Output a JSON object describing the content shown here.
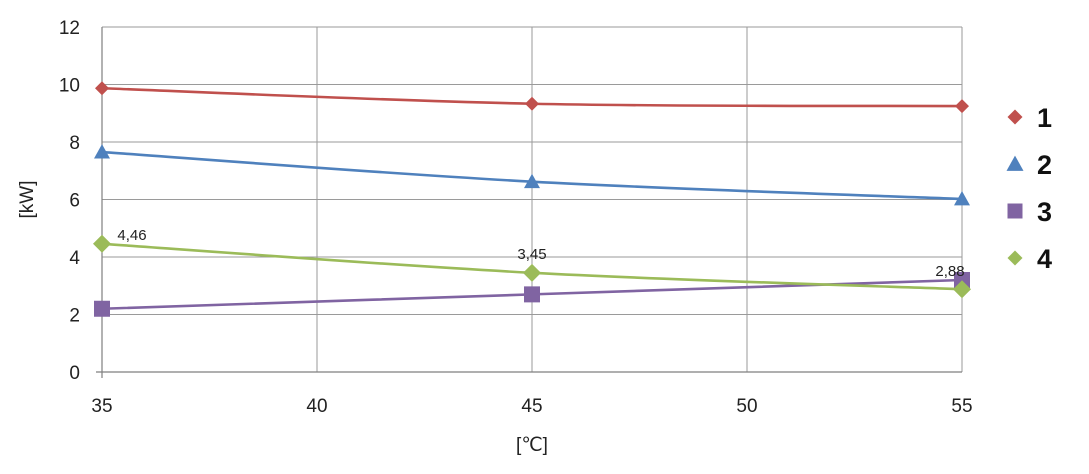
{
  "chart_data": {
    "type": "line",
    "title": "",
    "xlabel": "[℃]",
    "ylabel": "[kW]",
    "xlim": [
      35,
      55
    ],
    "ylim": [
      0,
      12
    ],
    "x_ticks": [
      "35",
      "40",
      "45",
      "50",
      "55"
    ],
    "y_ticks": [
      "0",
      "2",
      "4",
      "6",
      "8",
      "10",
      "12"
    ],
    "grid": true,
    "legend_position": "right",
    "x": [
      35,
      45,
      55
    ],
    "series": [
      {
        "name": "1",
        "values": [
          9.87,
          9.33,
          9.25
        ],
        "color": "#c0504d",
        "marker": "diamond"
      },
      {
        "name": "2",
        "values": [
          7.65,
          6.62,
          6.02
        ],
        "color": "#4f81bd",
        "marker": "triangle"
      },
      {
        "name": "3",
        "values": [
          2.2,
          2.7,
          3.2
        ],
        "color": "#8064a2",
        "marker": "square"
      },
      {
        "name": "4",
        "values": [
          4.46,
          3.45,
          2.88
        ],
        "color": "#9bbb59",
        "marker": "diamond"
      }
    ],
    "data_labels": [
      {
        "series": 3,
        "point": 0,
        "text": "4,46"
      },
      {
        "series": 3,
        "point": 1,
        "text": "3,45"
      },
      {
        "series": 3,
        "point": 2,
        "text": "2,88"
      }
    ]
  }
}
